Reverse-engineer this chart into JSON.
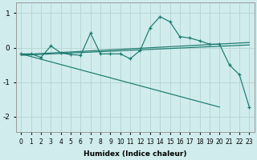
{
  "xlabel": "Humidex (Indice chaleur)",
  "bg_color": "#d0ecec",
  "grid_color": "#b8d8d4",
  "line_color": "#1a7a6e",
  "xlim": [
    -0.5,
    23.5
  ],
  "ylim": [
    -2.45,
    1.3
  ],
  "yticks": [
    1,
    0,
    -1,
    -2
  ],
  "xticks": [
    0,
    1,
    2,
    3,
    4,
    5,
    6,
    7,
    8,
    9,
    10,
    11,
    12,
    13,
    14,
    15,
    16,
    17,
    18,
    19,
    20,
    21,
    22,
    23
  ],
  "main_x": [
    0,
    1,
    2,
    3,
    4,
    5,
    6,
    7,
    8,
    9,
    10,
    11,
    12,
    13,
    14,
    15,
    16,
    17,
    18,
    19,
    20,
    21,
    22,
    23
  ],
  "main_y": [
    -0.18,
    -0.18,
    -0.28,
    0.05,
    -0.15,
    -0.2,
    -0.22,
    0.42,
    -0.18,
    -0.18,
    -0.18,
    -0.32,
    -0.08,
    0.58,
    0.9,
    0.75,
    0.32,
    0.28,
    0.2,
    0.1,
    0.1,
    -0.5,
    -0.78,
    -1.72
  ],
  "reg_line1": {
    "x": [
      0,
      23
    ],
    "y": [
      -0.2,
      0.15
    ]
  },
  "reg_line2": {
    "x": [
      0,
      23
    ],
    "y": [
      -0.22,
      0.08
    ]
  },
  "reg_line3": {
    "x": [
      0,
      20
    ],
    "y": [
      -0.18,
      -1.72
    ]
  }
}
